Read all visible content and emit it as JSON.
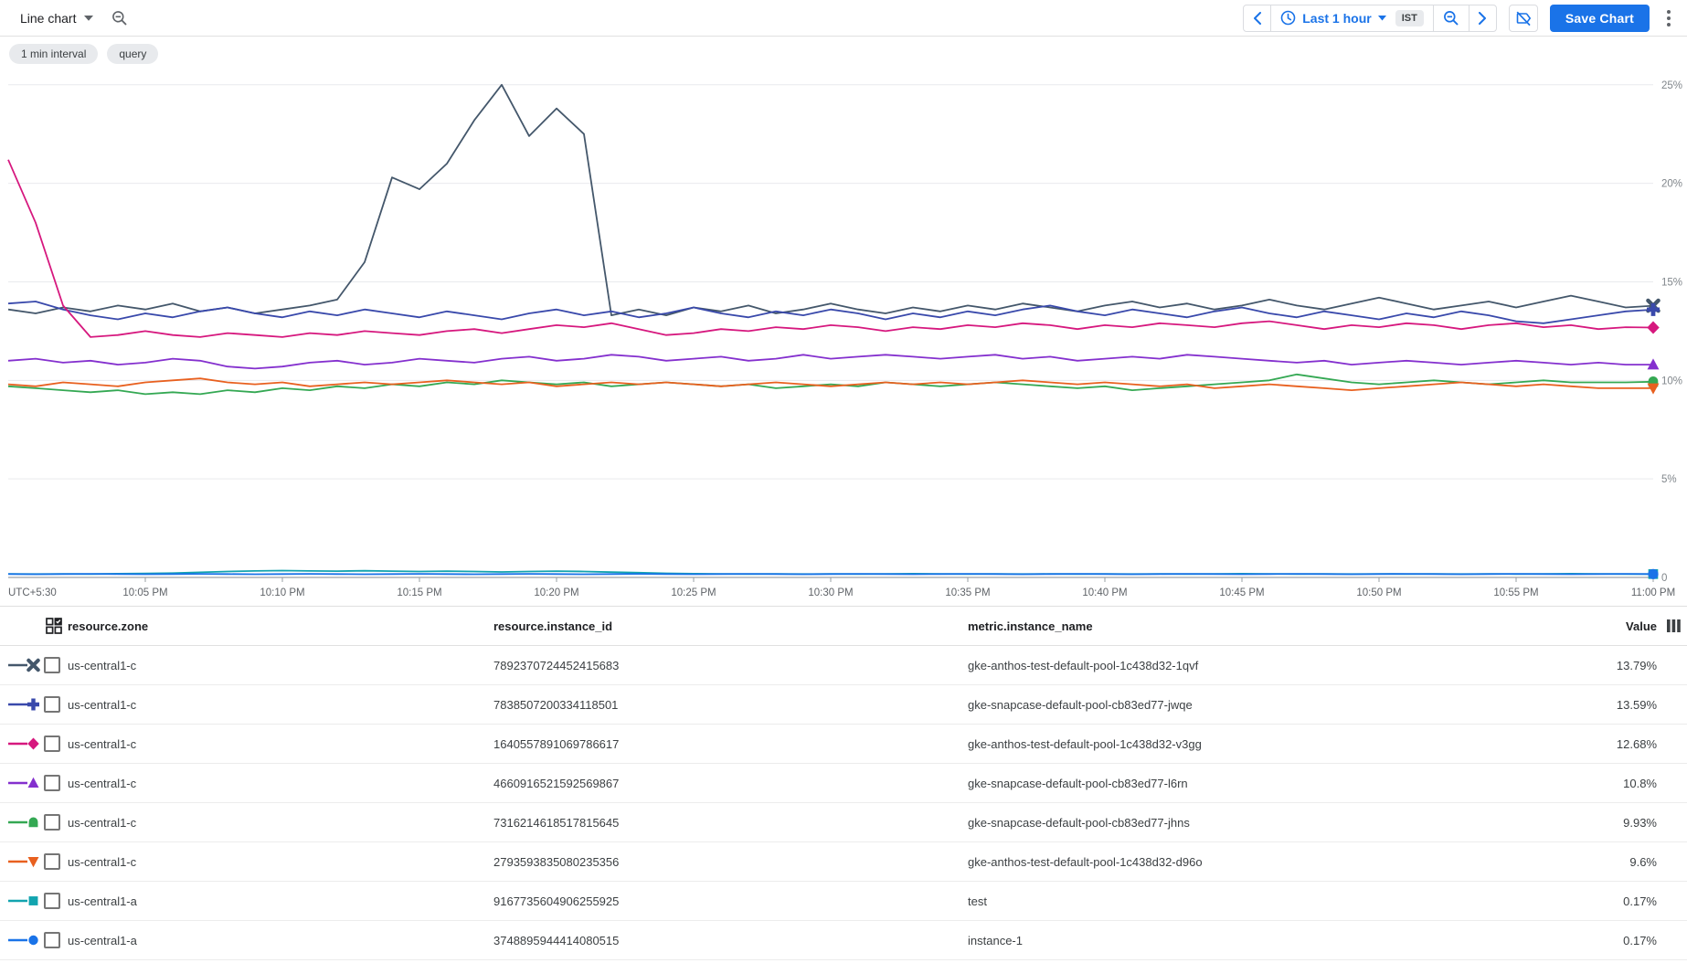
{
  "toolbar": {
    "chart_type": "Line chart",
    "time_range": "Last 1 hour",
    "timezone": "IST",
    "save_button": "Save Chart"
  },
  "chips": {
    "interval": "1 min interval",
    "query": "query"
  },
  "table": {
    "headers": {
      "zone": "resource.zone",
      "instance_id": "resource.instance_id",
      "metric_name": "metric.instance_name",
      "value": "Value"
    }
  },
  "chart_data": {
    "type": "line",
    "unit": "%",
    "grid": true,
    "x_axis": {
      "start_label": "UTC+5:30",
      "start_time": "10:00 PM",
      "end_time": "11:00 PM",
      "minutes_per_point": 1,
      "tick_labels": [
        "10:05 PM",
        "10:10 PM",
        "10:15 PM",
        "10:20 PM",
        "10:25 PM",
        "10:30 PM",
        "10:35 PM",
        "10:40 PM",
        "10:45 PM",
        "10:50 PM",
        "10:55 PM",
        "11:00 PM"
      ]
    },
    "y_axis": {
      "min": 0,
      "max": 25,
      "gridline_values": [
        25,
        20,
        15,
        10,
        5
      ],
      "tick_suffix": "%",
      "zero_label": "0",
      "label_color": "#80868b"
    },
    "series": [
      {
        "zone": "us-central1-c",
        "instance_id": "7892370724452415683",
        "name": "gke-anthos-test-default-pool-1c438d32-1qvf",
        "value": "13.79%",
        "color": "#44576b",
        "marker": "x",
        "values": [
          13.6,
          13.4,
          13.7,
          13.5,
          13.8,
          13.6,
          13.9,
          13.5,
          13.7,
          13.4,
          13.6,
          13.8,
          14.1,
          16.0,
          20.3,
          19.7,
          21.0,
          23.2,
          25.0,
          22.4,
          23.8,
          22.5,
          13.3,
          13.6,
          13.3,
          13.7,
          13.5,
          13.8,
          13.4,
          13.6,
          13.9,
          13.6,
          13.4,
          13.7,
          13.5,
          13.8,
          13.6,
          13.9,
          13.7,
          13.5,
          13.8,
          14.0,
          13.7,
          13.9,
          13.6,
          13.8,
          14.1,
          13.8,
          13.6,
          13.9,
          14.2,
          13.9,
          13.6,
          13.8,
          14.0,
          13.7,
          14.0,
          14.3,
          14.0,
          13.7,
          13.79
        ]
      },
      {
        "zone": "us-central1-c",
        "instance_id": "7838507200334118501",
        "name": "gke-snapcase-default-pool-cb83ed77-jwqe",
        "value": "13.59%",
        "color": "#3949ab",
        "marker": "plus",
        "values": [
          13.9,
          14.0,
          13.6,
          13.3,
          13.1,
          13.4,
          13.2,
          13.5,
          13.7,
          13.4,
          13.2,
          13.5,
          13.3,
          13.6,
          13.4,
          13.2,
          13.5,
          13.3,
          13.1,
          13.4,
          13.6,
          13.3,
          13.5,
          13.2,
          13.4,
          13.7,
          13.4,
          13.2,
          13.5,
          13.3,
          13.6,
          13.4,
          13.1,
          13.4,
          13.2,
          13.5,
          13.3,
          13.6,
          13.8,
          13.5,
          13.3,
          13.6,
          13.4,
          13.2,
          13.5,
          13.7,
          13.4,
          13.2,
          13.5,
          13.3,
          13.1,
          13.4,
          13.2,
          13.5,
          13.3,
          13.0,
          12.9,
          13.1,
          13.3,
          13.5,
          13.59
        ]
      },
      {
        "zone": "us-central1-c",
        "instance_id": "1640557891069786617",
        "name": "gke-anthos-test-default-pool-1c438d32-v3gg",
        "value": "12.68%",
        "color": "#d6187e",
        "marker": "diamond",
        "values": [
          21.2,
          18.0,
          13.8,
          12.2,
          12.3,
          12.5,
          12.3,
          12.2,
          12.4,
          12.3,
          12.2,
          12.4,
          12.3,
          12.5,
          12.4,
          12.3,
          12.5,
          12.6,
          12.4,
          12.6,
          12.8,
          12.7,
          12.9,
          12.6,
          12.3,
          12.4,
          12.6,
          12.5,
          12.7,
          12.6,
          12.8,
          12.7,
          12.5,
          12.7,
          12.6,
          12.8,
          12.7,
          12.9,
          12.8,
          12.6,
          12.8,
          12.7,
          12.9,
          12.8,
          12.7,
          12.9,
          13.0,
          12.8,
          12.6,
          12.8,
          12.7,
          12.9,
          12.8,
          12.6,
          12.8,
          12.9,
          12.7,
          12.8,
          12.6,
          12.7,
          12.68
        ]
      },
      {
        "zone": "us-central1-c",
        "instance_id": "4660916521592569867",
        "name": "gke-snapcase-default-pool-cb83ed77-l6rn",
        "value": "10.8%",
        "color": "#8430ce",
        "marker": "triangle-up",
        "values": [
          11.0,
          11.1,
          10.9,
          11.0,
          10.8,
          10.9,
          11.1,
          11.0,
          10.7,
          10.6,
          10.7,
          10.9,
          11.0,
          10.8,
          10.9,
          11.1,
          11.0,
          10.9,
          11.1,
          11.2,
          11.0,
          11.1,
          11.3,
          11.2,
          11.0,
          11.1,
          11.2,
          11.0,
          11.1,
          11.3,
          11.1,
          11.2,
          11.3,
          11.2,
          11.1,
          11.2,
          11.3,
          11.1,
          11.2,
          11.0,
          11.1,
          11.2,
          11.1,
          11.3,
          11.2,
          11.1,
          11.0,
          10.9,
          11.0,
          10.8,
          10.9,
          11.0,
          10.9,
          10.8,
          10.9,
          11.0,
          10.9,
          10.8,
          10.9,
          10.8,
          10.8
        ]
      },
      {
        "zone": "us-central1-c",
        "instance_id": "7316214618517815645",
        "name": "gke-snapcase-default-pool-cb83ed77-jhns",
        "value": "9.93%",
        "color": "#34a853",
        "marker": "arch",
        "values": [
          9.7,
          9.6,
          9.5,
          9.4,
          9.5,
          9.3,
          9.4,
          9.3,
          9.5,
          9.4,
          9.6,
          9.5,
          9.7,
          9.6,
          9.8,
          9.7,
          9.9,
          9.8,
          10.0,
          9.9,
          9.8,
          9.9,
          9.7,
          9.8,
          9.9,
          9.8,
          9.7,
          9.8,
          9.6,
          9.7,
          9.8,
          9.7,
          9.9,
          9.8,
          9.7,
          9.8,
          9.9,
          9.8,
          9.7,
          9.6,
          9.7,
          9.5,
          9.6,
          9.7,
          9.8,
          9.9,
          10.0,
          10.3,
          10.1,
          9.9,
          9.8,
          9.9,
          10.0,
          9.9,
          9.8,
          9.9,
          10.0,
          9.9,
          9.9,
          9.9,
          9.93
        ]
      },
      {
        "zone": "us-central1-c",
        "instance_id": "2793593835080235356",
        "name": "gke-anthos-test-default-pool-1c438d32-d96o",
        "value": "9.6%",
        "color": "#e8601f",
        "marker": "triangle-down",
        "values": [
          9.8,
          9.7,
          9.9,
          9.8,
          9.7,
          9.9,
          10.0,
          10.1,
          9.9,
          9.8,
          9.9,
          9.7,
          9.8,
          9.9,
          9.8,
          9.9,
          10.0,
          9.9,
          9.8,
          9.9,
          9.7,
          9.8,
          9.9,
          9.8,
          9.9,
          9.8,
          9.7,
          9.8,
          9.9,
          9.8,
          9.7,
          9.8,
          9.9,
          9.8,
          9.9,
          9.8,
          9.9,
          10.0,
          9.9,
          9.8,
          9.9,
          9.8,
          9.7,
          9.8,
          9.6,
          9.7,
          9.8,
          9.7,
          9.6,
          9.5,
          9.6,
          9.7,
          9.8,
          9.9,
          9.8,
          9.7,
          9.8,
          9.7,
          9.6,
          9.6,
          9.6
        ]
      },
      {
        "zone": "us-central1-a",
        "instance_id": "9167735604906255925",
        "name": "test",
        "value": "0.17%",
        "color": "#12a4af",
        "marker": "square",
        "values": [
          0.18,
          0.17,
          0.18,
          0.17,
          0.19,
          0.2,
          0.22,
          0.26,
          0.3,
          0.33,
          0.35,
          0.33,
          0.32,
          0.34,
          0.32,
          0.3,
          0.32,
          0.3,
          0.28,
          0.3,
          0.32,
          0.3,
          0.27,
          0.24,
          0.21,
          0.19,
          0.18,
          0.17,
          0.18,
          0.17,
          0.18,
          0.17,
          0.18,
          0.19,
          0.18,
          0.17,
          0.18,
          0.17,
          0.18,
          0.17,
          0.18,
          0.17,
          0.18,
          0.17,
          0.18,
          0.19,
          0.18,
          0.17,
          0.18,
          0.17,
          0.18,
          0.17,
          0.18,
          0.17,
          0.18,
          0.17,
          0.18,
          0.19,
          0.18,
          0.17,
          0.17
        ]
      },
      {
        "zone": "us-central1-a",
        "instance_id": "3748895944414080515",
        "name": "instance-1",
        "value": "0.17%",
        "color": "#1a73e8",
        "marker": "circle",
        "values": [
          0.17,
          0.16,
          0.17,
          0.18,
          0.17,
          0.16,
          0.17,
          0.18,
          0.17,
          0.16,
          0.17,
          0.18,
          0.17,
          0.16,
          0.17,
          0.18,
          0.17,
          0.16,
          0.17,
          0.18,
          0.17,
          0.16,
          0.17,
          0.18,
          0.17,
          0.16,
          0.17,
          0.18,
          0.17,
          0.16,
          0.17,
          0.18,
          0.17,
          0.16,
          0.17,
          0.18,
          0.17,
          0.16,
          0.17,
          0.18,
          0.17,
          0.16,
          0.17,
          0.18,
          0.17,
          0.16,
          0.17,
          0.18,
          0.17,
          0.16,
          0.17,
          0.18,
          0.17,
          0.16,
          0.17,
          0.18,
          0.17,
          0.16,
          0.17,
          0.18,
          0.17
        ]
      }
    ]
  }
}
